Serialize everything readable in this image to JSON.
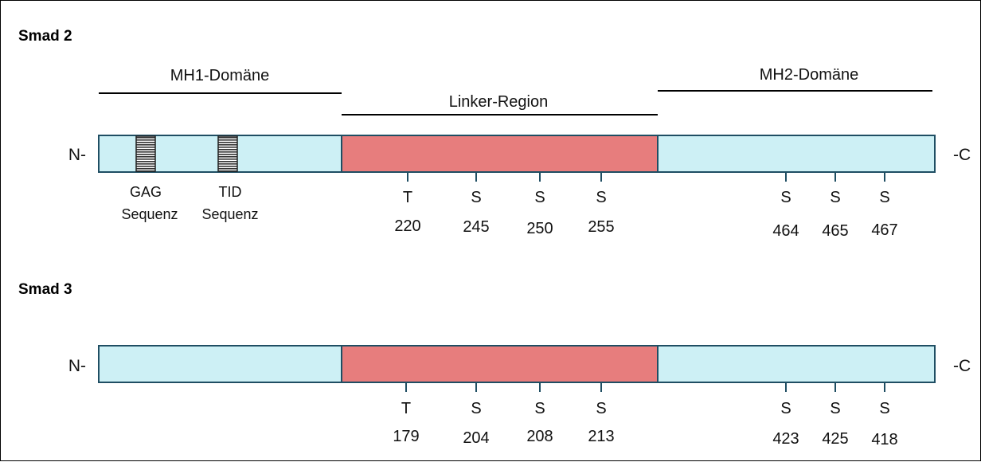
{
  "colors": {
    "domain_fill": "#cdf0f5",
    "linker_fill": "#e77d7d",
    "outline": "#1f4e63",
    "motif_fill": "#333333"
  },
  "domains": {
    "mh1": "MH1-Domäne",
    "linker": "Linker-Region",
    "mh2": "MH2-Domäne"
  },
  "termini": {
    "n": "N-",
    "c": "-C"
  },
  "smad2": {
    "title": "Smad 2",
    "motifs": [
      {
        "line1": "GAG",
        "line2": "Sequenz"
      },
      {
        "line1": "TID",
        "line2": "Sequenz"
      }
    ],
    "sites": [
      {
        "residue": "T",
        "position": "220"
      },
      {
        "residue": "S",
        "position": "245"
      },
      {
        "residue": "S",
        "position": "250"
      },
      {
        "residue": "S",
        "position": "255"
      },
      {
        "residue": "S",
        "position": "464"
      },
      {
        "residue": "S",
        "position": "465"
      },
      {
        "residue": "S",
        "position": "467"
      }
    ]
  },
  "smad3": {
    "title": "Smad 3",
    "sites": [
      {
        "residue": "T",
        "position": "179"
      },
      {
        "residue": "S",
        "position": "204"
      },
      {
        "residue": "S",
        "position": "208"
      },
      {
        "residue": "S",
        "position": "213"
      },
      {
        "residue": "S",
        "position": "423"
      },
      {
        "residue": "S",
        "position": "425"
      },
      {
        "residue": "S",
        "position": "418"
      }
    ]
  }
}
